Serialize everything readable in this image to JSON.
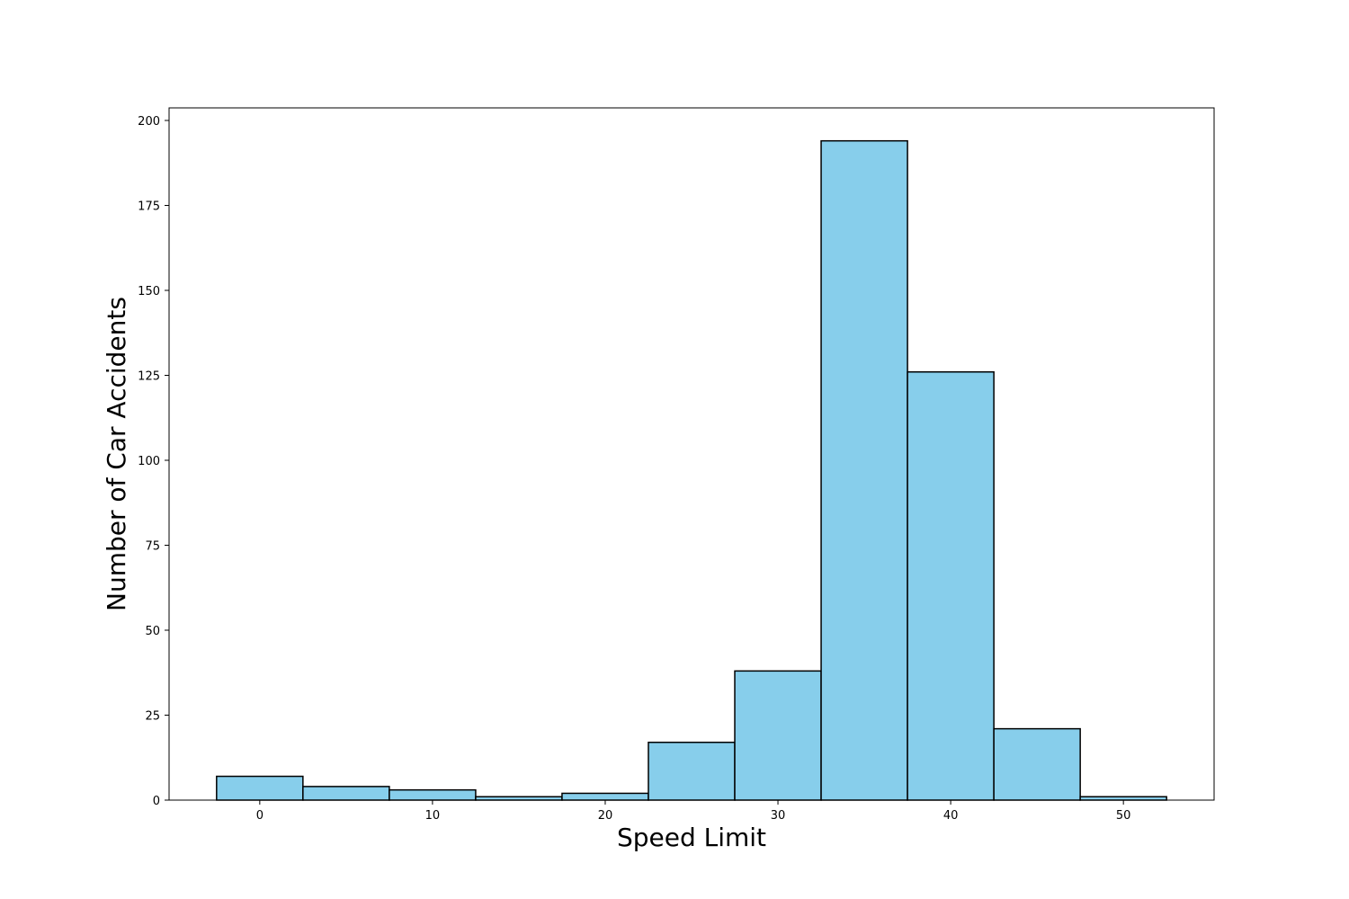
{
  "chart_data": {
    "type": "bar",
    "subtype": "histogram",
    "xlabel": "Speed Limit",
    "ylabel": "Number of Car Accidents",
    "bin_width": 5,
    "bins": [
      {
        "center": 0,
        "value": 7
      },
      {
        "center": 5,
        "value": 4
      },
      {
        "center": 10,
        "value": 3
      },
      {
        "center": 15,
        "value": 1
      },
      {
        "center": 20,
        "value": 2
      },
      {
        "center": 25,
        "value": 17
      },
      {
        "center": 30,
        "value": 38
      },
      {
        "center": 35,
        "value": 194
      },
      {
        "center": 40,
        "value": 126
      },
      {
        "center": 45,
        "value": 21
      },
      {
        "center": 50,
        "value": 1
      }
    ],
    "xlim": [
      -5.25,
      55.25
    ],
    "ylim": [
      0,
      203.7
    ],
    "xticks": [
      0,
      10,
      20,
      30,
      40,
      50
    ],
    "yticks": [
      0,
      25,
      50,
      75,
      100,
      125,
      150,
      175,
      200
    ],
    "bar_color": "#87CEEB",
    "edge_color": "#000000",
    "grid": false,
    "legend": "none"
  }
}
